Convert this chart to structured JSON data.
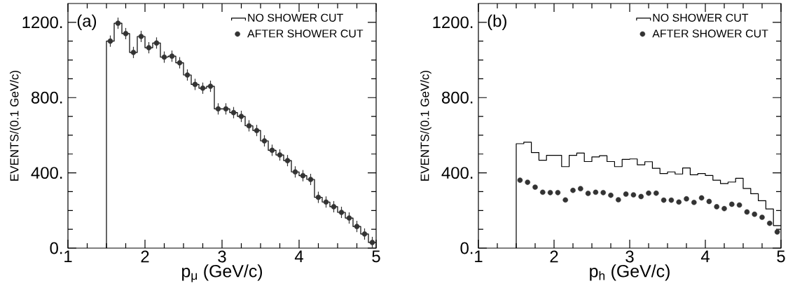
{
  "chart_data": [
    {
      "type": "histogram",
      "xlabel": "p$_{μ}$ (GeV/c)",
      "ylabel": "EVENTS/(0.1 GeV/c)",
      "annotations": [
        "(a)"
      ],
      "legend": "top right",
      "xlim": [
        1,
        5
      ],
      "ylim": [
        0,
        1300
      ],
      "xticks": [
        1,
        2,
        3,
        4,
        5
      ],
      "yticks": [
        {
          "value": 0,
          "label": "0."
        },
        {
          "value": 400,
          "label": "400."
        },
        {
          "value": 800,
          "label": "800."
        },
        {
          "value": 1200,
          "label": "1200."
        }
      ],
      "bins": [
        1.5,
        1.6,
        1.7,
        1.8,
        1.9,
        2.0,
        2.1,
        2.2,
        2.3,
        2.4,
        2.5,
        2.6,
        2.7,
        2.8,
        2.9,
        3.0,
        3.1,
        3.2,
        3.3,
        3.4,
        3.5,
        3.6,
        3.7,
        3.8,
        3.9,
        4.0,
        4.1,
        4.2,
        4.3,
        4.4,
        4.5,
        4.6,
        4.7,
        4.8,
        4.9,
        5.0
      ],
      "series": [
        {
          "name": "NO SHOWER CUT",
          "color": "#000000",
          "values": [
            1100,
            1195,
            1140,
            1040,
            1125,
            1065,
            1090,
            1015,
            1020,
            985,
            920,
            870,
            850,
            860,
            740,
            740,
            720,
            700,
            650,
            625,
            570,
            520,
            495,
            465,
            405,
            385,
            365,
            270,
            245,
            220,
            190,
            160,
            115,
            75,
            30
          ]
        },
        {
          "name": "AFTER SHOWER CUT",
          "type": "scatter",
          "marker": "circle",
          "color": "#333333",
          "x": [
            1.55,
            1.65,
            1.75,
            1.85,
            1.95,
            2.05,
            2.15,
            2.25,
            2.35,
            2.45,
            2.55,
            2.65,
            2.75,
            2.85,
            2.95,
            3.05,
            3.15,
            3.25,
            3.35,
            3.45,
            3.55,
            3.65,
            3.75,
            3.85,
            3.95,
            4.05,
            4.15,
            4.25,
            4.35,
            4.45,
            4.55,
            4.65,
            4.75,
            4.85,
            4.95
          ],
          "values": [
            1100,
            1195,
            1140,
            1040,
            1125,
            1065,
            1090,
            1015,
            1020,
            985,
            920,
            870,
            850,
            860,
            740,
            740,
            720,
            700,
            650,
            625,
            570,
            520,
            495,
            465,
            405,
            385,
            365,
            270,
            245,
            220,
            190,
            160,
            115,
            75,
            30
          ],
          "errors": [
            30,
            30,
            30,
            30,
            30,
            30,
            30,
            30,
            30,
            30,
            30,
            30,
            30,
            30,
            30,
            30,
            30,
            30,
            30,
            30,
            30,
            30,
            30,
            30,
            30,
            30,
            30,
            30,
            30,
            30,
            30,
            30,
            30,
            30,
            30
          ]
        }
      ]
    },
    {
      "type": "histogram",
      "xlabel": "p$_{h}$ (GeV/c)",
      "ylabel": "EVENTS/(0.1 GeV/c)",
      "annotations": [
        "(b)"
      ],
      "legend": "top right",
      "xlim": [
        1,
        5
      ],
      "ylim": [
        0,
        1300
      ],
      "xticks": [
        1,
        2,
        3,
        4,
        5
      ],
      "yticks": [
        {
          "value": 0,
          "label": "0."
        },
        {
          "value": 400,
          "label": "400."
        },
        {
          "value": 800,
          "label": "800."
        },
        {
          "value": 1200,
          "label": "1200."
        }
      ],
      "bins": [
        1.5,
        1.6,
        1.7,
        1.8,
        1.9,
        2.0,
        2.1,
        2.2,
        2.3,
        2.4,
        2.5,
        2.6,
        2.7,
        2.8,
        2.9,
        3.0,
        3.1,
        3.2,
        3.3,
        3.4,
        3.5,
        3.6,
        3.7,
        3.8,
        3.9,
        4.0,
        4.1,
        4.2,
        4.3,
        4.4,
        4.5,
        4.6,
        4.7,
        4.8,
        4.9,
        5.0
      ],
      "series": [
        {
          "name": "NO SHOWER CUT",
          "color": "#000000",
          "values": [
            555,
            563,
            508,
            467,
            493,
            493,
            433,
            493,
            505,
            460,
            485,
            491,
            460,
            433,
            472,
            474,
            443,
            459,
            424,
            396,
            405,
            394,
            426,
            390,
            396,
            386,
            361,
            343,
            351,
            371,
            317,
            289,
            252,
            208,
            120
          ]
        },
        {
          "name": "AFTER SHOWER CUT",
          "type": "scatter",
          "marker": "circle",
          "color": "#333333",
          "x": [
            1.55,
            1.65,
            1.75,
            1.85,
            1.95,
            2.05,
            2.15,
            2.25,
            2.35,
            2.45,
            2.55,
            2.65,
            2.75,
            2.85,
            2.95,
            3.05,
            3.15,
            3.25,
            3.35,
            3.45,
            3.55,
            3.65,
            3.75,
            3.85,
            3.95,
            4.05,
            4.15,
            4.25,
            4.35,
            4.45,
            4.55,
            4.65,
            4.75,
            4.85,
            4.95
          ],
          "values": [
            361,
            350,
            324,
            297,
            295,
            295,
            256,
            307,
            316,
            291,
            297,
            295,
            281,
            257,
            287,
            283,
            274,
            292,
            292,
            255,
            255,
            245,
            262,
            243,
            267,
            248,
            220,
            210,
            233,
            229,
            192,
            180,
            164,
            132,
            86
          ]
        }
      ]
    }
  ]
}
